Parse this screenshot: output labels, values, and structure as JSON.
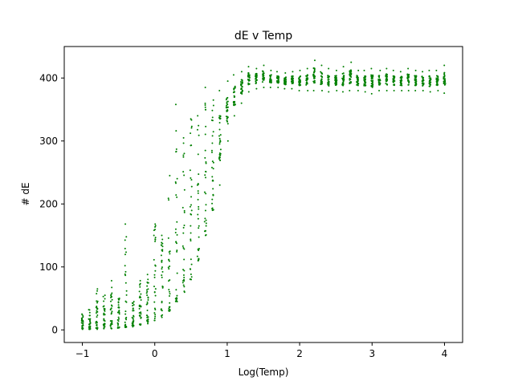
{
  "chart_data": {
    "type": "scatter",
    "title": "dE v Temp",
    "xlabel": "Log(Temp)",
    "ylabel": "# dE",
    "xlim": [
      -1.25,
      4.25
    ],
    "ylim": [
      -20,
      450
    ],
    "xticks": [
      -1,
      0,
      1,
      2,
      3,
      4
    ],
    "xtick_labels": [
      "−1",
      "0",
      "1",
      "2",
      "3",
      "4"
    ],
    "yticks": [
      0,
      100,
      200,
      300,
      400
    ],
    "ytick_labels": [
      "0",
      "100",
      "200",
      "300",
      "400"
    ],
    "grid": false,
    "legend": "none",
    "marker_color": "#008000",
    "x_values": [
      -1.0,
      -0.9,
      -0.8,
      -0.7,
      -0.6,
      -0.5,
      -0.4,
      -0.3,
      -0.2,
      -0.1,
      0.0,
      0.1,
      0.2,
      0.3,
      0.4,
      0.5,
      0.6,
      0.7,
      0.8,
      0.9,
      1.0,
      1.1,
      1.2,
      1.3,
      1.4,
      1.5,
      1.6,
      1.7,
      1.8,
      1.9,
      2.0,
      2.1,
      2.2,
      2.3,
      2.4,
      2.5,
      2.6,
      2.7,
      2.8,
      2.9,
      3.0,
      3.1,
      3.2,
      3.3,
      3.4,
      3.5,
      3.6,
      3.7,
      3.8,
      3.9,
      4.0
    ],
    "y_min": [
      1,
      1,
      1,
      2,
      2,
      3,
      4,
      5,
      8,
      10,
      15,
      20,
      30,
      45,
      60,
      80,
      110,
      150,
      190,
      230,
      300,
      340,
      360,
      378,
      383,
      385,
      385,
      385,
      383,
      383,
      380,
      380,
      380,
      380,
      378,
      380,
      378,
      380,
      380,
      378,
      375,
      380,
      380,
      380,
      380,
      380,
      380,
      380,
      378,
      380,
      376
    ],
    "y_max": [
      25,
      32,
      65,
      55,
      78,
      50,
      168,
      45,
      78,
      88,
      168,
      150,
      245,
      358,
      305,
      335,
      340,
      385,
      365,
      380,
      395,
      405,
      410,
      418,
      415,
      420,
      412,
      410,
      408,
      410,
      412,
      415,
      428,
      420,
      415,
      412,
      418,
      425,
      412,
      412,
      415,
      412,
      415,
      412,
      410,
      415,
      412,
      410,
      412,
      412,
      420
    ],
    "samples_per_x": 30
  }
}
